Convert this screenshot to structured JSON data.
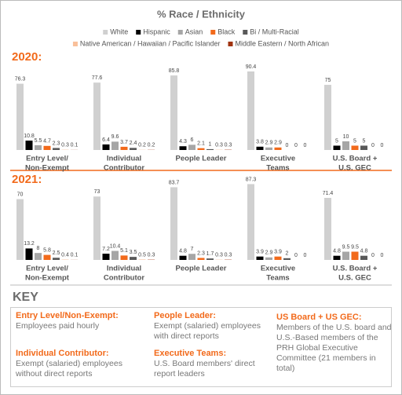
{
  "chart_data": [
    {
      "type": "bar",
      "title": "% Race / Ethnicity",
      "subtitle": "2020:",
      "categories": [
        [
          "Entry Level/",
          "Non-Exempt"
        ],
        [
          "Individual",
          "Contributor"
        ],
        [
          "People Leader"
        ],
        [
          "Executive",
          "Teams"
        ],
        [
          "U.S. Board +",
          "U.S. GEC"
        ]
      ],
      "series": [
        {
          "name": "White",
          "color": "#d0d0d0",
          "values": [
            76.3,
            77.6,
            85.8,
            90.4,
            75
          ]
        },
        {
          "name": "Hispanic",
          "color": "#000000",
          "values": [
            10.8,
            6.4,
            4.3,
            3.8,
            5
          ]
        },
        {
          "name": "Asian",
          "color": "#a6a6a6",
          "values": [
            5.5,
            9.6,
            6,
            2.9,
            10
          ]
        },
        {
          "name": "Black",
          "color": "#f26a1b",
          "values": [
            4.7,
            3.7,
            2.1,
            2.9,
            5
          ]
        },
        {
          "name": "Bi / Multi-Racial",
          "color": "#595959",
          "values": [
            2.3,
            2.4,
            1,
            0,
            5
          ]
        },
        {
          "name": "Native American / Hawaiian / Pacific Islander",
          "color": "#f9c09a",
          "values": [
            0.3,
            0.2,
            0.3,
            0,
            0
          ]
        },
        {
          "name": "Middle Eastern / North African",
          "color": "#a0330f",
          "values": [
            0.1,
            0.2,
            0.3,
            0,
            0
          ]
        }
      ]
    },
    {
      "type": "bar",
      "subtitle": "2021:",
      "categories": [
        [
          "Entry Level/",
          "Non-Exempt"
        ],
        [
          "Individual",
          "Contributor"
        ],
        [
          "People Leader"
        ],
        [
          "Executive",
          "Teams"
        ],
        [
          "U.S. Board +",
          "U.S. GEC"
        ]
      ],
      "series": [
        {
          "color": "#d0d0d0",
          "values": [
            70,
            73,
            83.7,
            87.3,
            71.4
          ]
        },
        {
          "color": "#000000",
          "values": [
            13.2,
            7.2,
            4.8,
            3.9,
            4.8
          ]
        },
        {
          "color": "#a6a6a6",
          "values": [
            8,
            10.4,
            7,
            2.9,
            9.5
          ]
        },
        {
          "color": "#f26a1b",
          "values": [
            5.8,
            5.1,
            2.3,
            3.9,
            9.5
          ]
        },
        {
          "color": "#595959",
          "values": [
            2.5,
            3.5,
            1.7,
            2,
            4.8
          ]
        },
        {
          "color": "#f9c09a",
          "values": [
            0.4,
            0.5,
            0.3,
            0,
            0
          ]
        },
        {
          "color": "#a0330f",
          "values": [
            0.1,
            0.3,
            0.3,
            0,
            0
          ]
        }
      ]
    }
  ],
  "key": {
    "title": "KEY",
    "items": [
      {
        "title": "Entry Level/Non-Exempt:",
        "text": "Employees paid hourly"
      },
      {
        "title": "Individual Contributor:",
        "text": "Exempt (salaried) employees without direct reports"
      },
      {
        "title": "People Leader:",
        "text": "Exempt (salaried) employees with direct reports"
      },
      {
        "title": "Executive Teams:",
        "text": "U.S. Board members' direct report leaders"
      },
      {
        "title": "US Board + US GEC:",
        "text": "Members of the U.S. board and U.S.-Based members of the PRH Global Executive Committee (21 members in total)"
      }
    ]
  }
}
